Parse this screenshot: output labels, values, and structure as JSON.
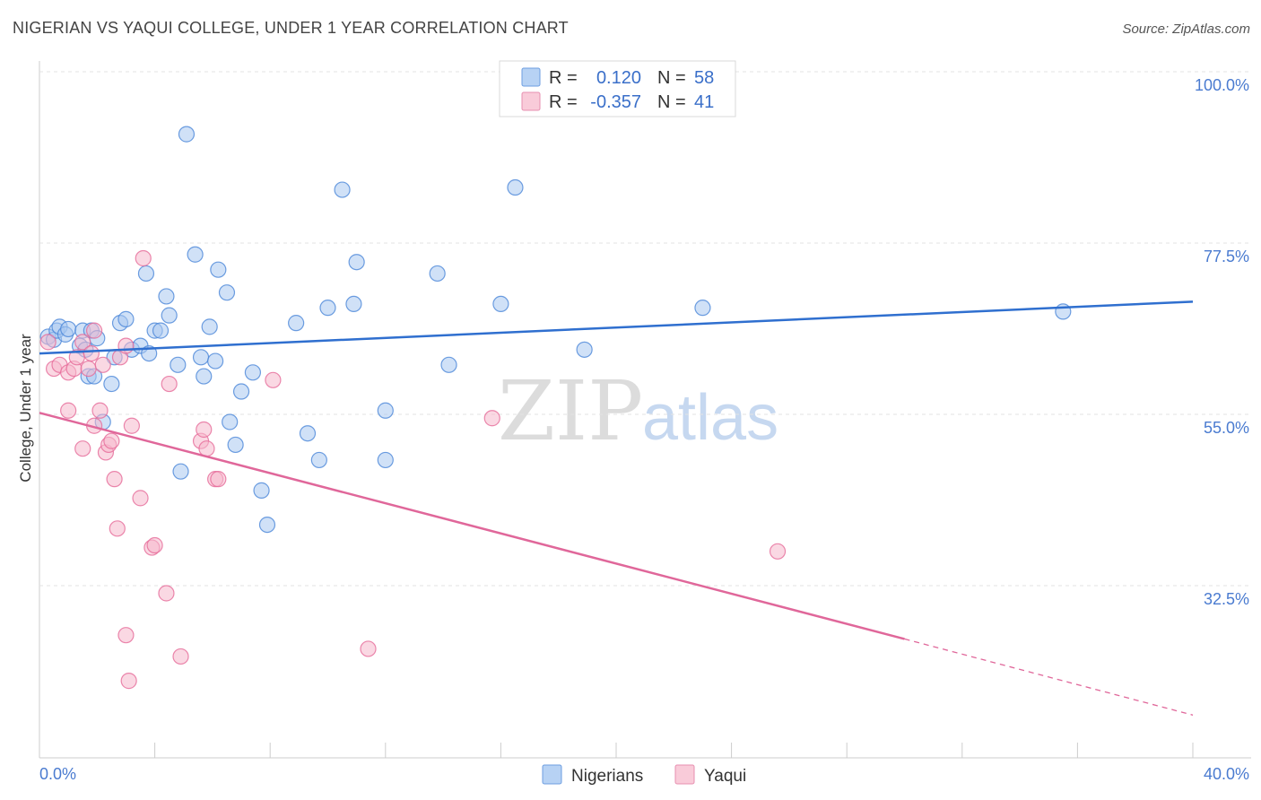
{
  "header": {
    "title": "NIGERIAN VS YAQUI COLLEGE, UNDER 1 YEAR CORRELATION CHART",
    "source": "Source: ZipAtlas.com"
  },
  "colors": {
    "blue": "#4a86d8",
    "blue_fill": "#a9c8f0",
    "pink": "#e66a98",
    "pink_fill": "#f6b8cc"
  },
  "legend": {
    "rows": [
      {
        "r_label": "R =",
        "r_value": "0.120",
        "n_label": "N =",
        "n_value": "58"
      },
      {
        "r_label": "R =",
        "r_value": "-0.357",
        "n_label": "N =",
        "n_value": "41"
      }
    ]
  },
  "bottom_legend": {
    "items": [
      {
        "label": "Nigerians"
      },
      {
        "label": "Yaqui"
      }
    ]
  },
  "watermark": {
    "zip": "ZIP",
    "atlas": "atlas"
  },
  "chart_data": {
    "type": "scatter",
    "title": "NIGERIAN VS YAQUI COLLEGE, UNDER 1 YEAR CORRELATION CHART",
    "xlabel": "",
    "ylabel": "College, Under 1 year",
    "xlim": [
      0,
      40
    ],
    "ylim": [
      11,
      103
    ],
    "x_tick_labels": [
      "0.0%",
      "40.0%"
    ],
    "y_ticks": [
      32.5,
      55.0,
      77.5,
      100.0
    ],
    "y_tick_labels": [
      "32.5%",
      "55.0%",
      "77.5%",
      "100.0%"
    ],
    "grid": true,
    "series": [
      {
        "name": "Nigerians",
        "r": 0.12,
        "n": 58,
        "trend": {
          "x0": 0,
          "y0": 63.0,
          "x1": 40,
          "y1": 69.8
        },
        "points": [
          [
            0.3,
            65.2
          ],
          [
            0.5,
            64.8
          ],
          [
            0.6,
            66.0
          ],
          [
            0.7,
            66.5
          ],
          [
            0.9,
            65.5
          ],
          [
            1.0,
            66.2
          ],
          [
            1.4,
            64.0
          ],
          [
            1.5,
            66.0
          ],
          [
            1.6,
            63.5
          ],
          [
            1.8,
            66.0
          ],
          [
            2.0,
            65.0
          ],
          [
            1.7,
            60.0
          ],
          [
            1.9,
            60.0
          ],
          [
            2.2,
            54.0
          ],
          [
            2.5,
            59.0
          ],
          [
            2.6,
            62.5
          ],
          [
            2.8,
            67.0
          ],
          [
            3.0,
            67.5
          ],
          [
            3.2,
            63.5
          ],
          [
            3.5,
            64.0
          ],
          [
            3.8,
            63.0
          ],
          [
            3.7,
            73.5
          ],
          [
            4.0,
            66.0
          ],
          [
            4.2,
            66.0
          ],
          [
            4.4,
            70.5
          ],
          [
            4.5,
            68.0
          ],
          [
            4.8,
            61.5
          ],
          [
            4.9,
            47.5
          ],
          [
            5.1,
            91.8
          ],
          [
            5.4,
            76.0
          ],
          [
            5.6,
            62.5
          ],
          [
            5.7,
            60.0
          ],
          [
            5.9,
            66.5
          ],
          [
            6.1,
            62.0
          ],
          [
            6.2,
            74.0
          ],
          [
            6.5,
            71.0
          ],
          [
            6.6,
            54.0
          ],
          [
            6.8,
            51.0
          ],
          [
            7.0,
            58.0
          ],
          [
            7.4,
            60.5
          ],
          [
            7.7,
            45.0
          ],
          [
            7.9,
            40.5
          ],
          [
            8.9,
            67.0
          ],
          [
            9.3,
            52.5
          ],
          [
            9.7,
            49.0
          ],
          [
            10.0,
            69.0
          ],
          [
            10.5,
            84.5
          ],
          [
            10.9,
            69.5
          ],
          [
            11.0,
            75.0
          ],
          [
            12.0,
            55.5
          ],
          [
            12.0,
            49.0
          ],
          [
            13.8,
            73.5
          ],
          [
            14.2,
            61.5
          ],
          [
            16.0,
            69.5
          ],
          [
            16.5,
            84.8
          ],
          [
            18.9,
            63.5
          ],
          [
            23.0,
            69.0
          ],
          [
            35.5,
            68.5
          ]
        ]
      },
      {
        "name": "Yaqui",
        "r": -0.357,
        "n": 41,
        "trend": {
          "x0": 0,
          "y0": 55.2,
          "x1": 30.0,
          "y1": 25.5
        },
        "trend_dashed": {
          "x0": 30.0,
          "y0": 25.5,
          "x1": 40,
          "y1": 15.5
        },
        "points": [
          [
            0.3,
            64.5
          ],
          [
            0.5,
            61.0
          ],
          [
            0.7,
            61.5
          ],
          [
            1.0,
            60.5
          ],
          [
            1.2,
            61.0
          ],
          [
            1.3,
            62.5
          ],
          [
            1.5,
            64.5
          ],
          [
            1.7,
            61.0
          ],
          [
            1.8,
            63.0
          ],
          [
            1.9,
            66.0
          ],
          [
            1.0,
            55.5
          ],
          [
            1.5,
            50.5
          ],
          [
            1.9,
            53.5
          ],
          [
            2.1,
            55.5
          ],
          [
            2.2,
            61.5
          ],
          [
            2.3,
            50.0
          ],
          [
            2.4,
            51.0
          ],
          [
            2.5,
            51.5
          ],
          [
            2.6,
            46.5
          ],
          [
            2.8,
            62.5
          ],
          [
            2.7,
            40.0
          ],
          [
            3.0,
            64.0
          ],
          [
            3.2,
            53.5
          ],
          [
            3.5,
            44.0
          ],
          [
            3.6,
            75.5
          ],
          [
            3.9,
            37.5
          ],
          [
            4.0,
            37.8
          ],
          [
            4.4,
            31.5
          ],
          [
            4.5,
            59.0
          ],
          [
            3.0,
            26.0
          ],
          [
            3.1,
            20.0
          ],
          [
            4.9,
            23.2
          ],
          [
            5.6,
            51.5
          ],
          [
            5.7,
            53.0
          ],
          [
            5.8,
            50.5
          ],
          [
            6.1,
            46.5
          ],
          [
            6.2,
            46.5
          ],
          [
            8.1,
            59.5
          ],
          [
            11.4,
            24.2
          ],
          [
            15.7,
            54.5
          ],
          [
            25.6,
            37.0
          ]
        ]
      }
    ]
  }
}
